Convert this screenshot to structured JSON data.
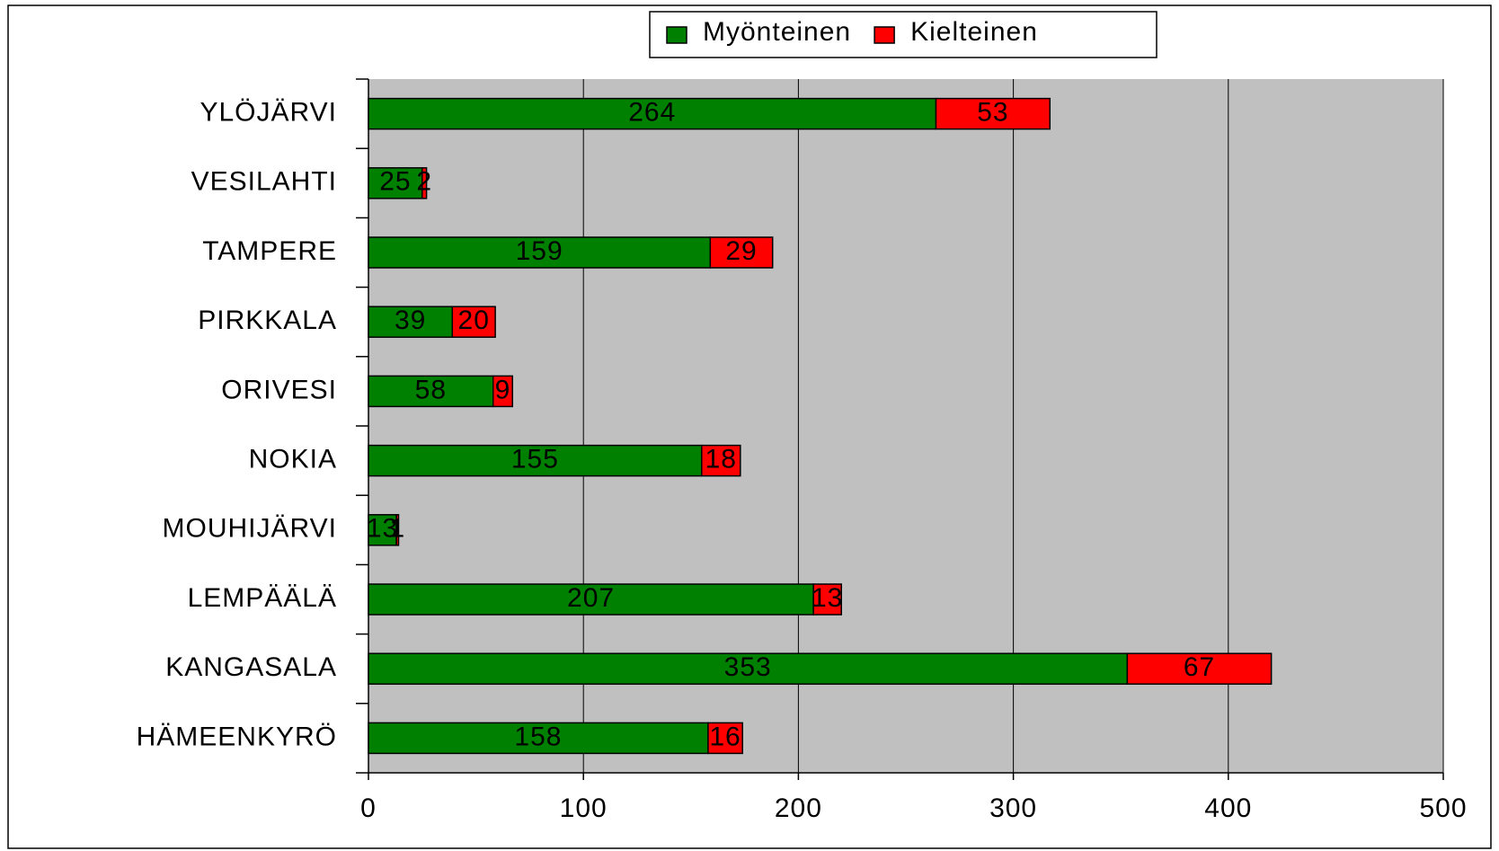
{
  "chart_data": {
    "type": "stacked-bar-horizontal",
    "categories": [
      "YLÖJÄRVI",
      "VESILAHTI",
      "TAMPERE",
      "PIRKKALA",
      "ORIVESI",
      "NOKIA",
      "MOUHIJÄRVI",
      "LEMPÄÄLÄ",
      "KANGASALA",
      "HÄMEENKYRÖ"
    ],
    "series": [
      {
        "name": "Myönteinen",
        "color": "#008000",
        "values": [
          264,
          25,
          159,
          39,
          58,
          155,
          13,
          207,
          353,
          158
        ]
      },
      {
        "name": "Kielteinen",
        "color": "#ff0000",
        "values": [
          53,
          2,
          29,
          20,
          9,
          18,
          1,
          13,
          67,
          16
        ]
      }
    ],
    "xlim": [
      0,
      500
    ],
    "xticks": [
      0,
      100,
      200,
      300,
      400,
      500
    ],
    "grid": true,
    "legend": "top"
  }
}
